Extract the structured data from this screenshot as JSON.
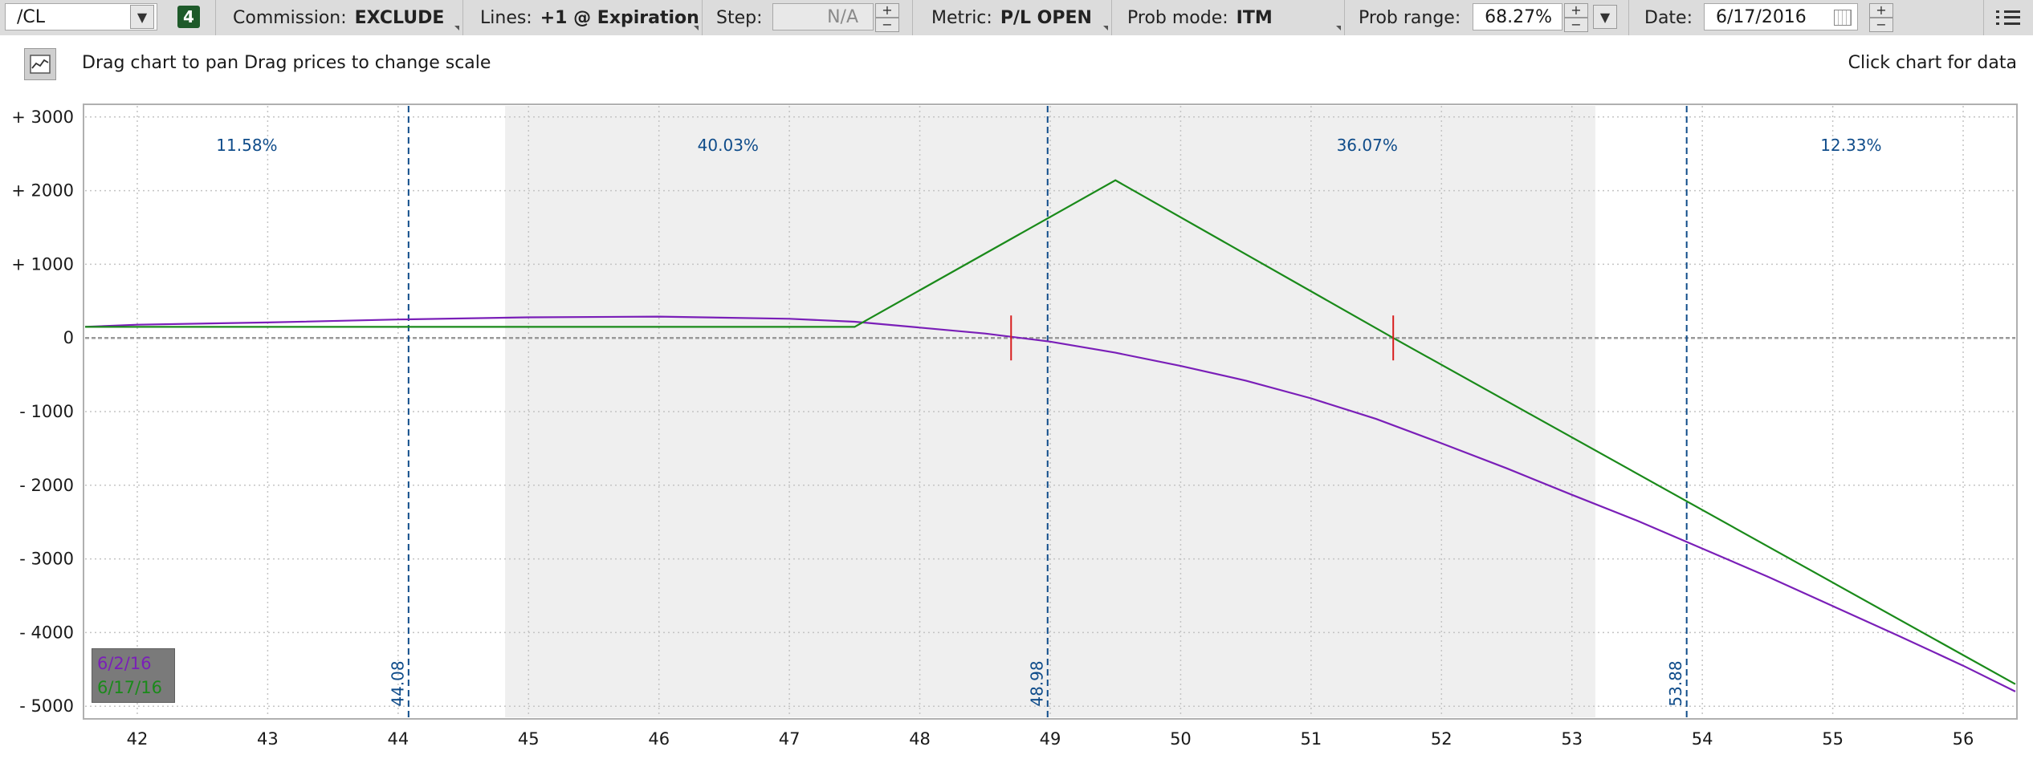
{
  "toolbar": {
    "symbol": "/CL",
    "count_badge": "4",
    "commission_label": "Commission:",
    "commission_value": "EXCLUDE",
    "lines_label": "Lines:",
    "lines_value": "+1 @ Expiration",
    "step_label": "Step:",
    "step_value": "N/A",
    "metric_label": "Metric:",
    "metric_value": "P/L OPEN",
    "prob_mode_label": "Prob mode:",
    "prob_mode_value": "ITM",
    "prob_range_label": "Prob range:",
    "prob_range_value": "68.27%",
    "date_label": "Date:",
    "date_value": "6/17/2016"
  },
  "hints": {
    "drag": "Drag chart to pan Drag prices to change scale",
    "click": "Click chart for data"
  },
  "legend": {
    "items": [
      {
        "label": "6/2/16",
        "color": "#7a1fb8"
      },
      {
        "label": "6/17/16",
        "color": "#1a8a1a"
      }
    ]
  },
  "chart_data": {
    "type": "line",
    "xlim": [
      41.6,
      56.4
    ],
    "ylim": [
      -5150,
      3150
    ],
    "x_ticks": [
      42,
      43,
      44,
      45,
      46,
      47,
      48,
      49,
      50,
      51,
      52,
      53,
      54,
      55,
      56
    ],
    "y_ticks": [
      {
        "value": 3000,
        "label": "+ 3000"
      },
      {
        "value": 2000,
        "label": "+ 2000"
      },
      {
        "value": 1000,
        "label": "+ 1000"
      },
      {
        "value": 0,
        "label": "0"
      },
      {
        "value": -1000,
        "label": "- 1000"
      },
      {
        "value": -2000,
        "label": "- 2000"
      },
      {
        "value": -3000,
        "label": "- 3000"
      },
      {
        "value": -4000,
        "label": "- 4000"
      },
      {
        "value": -5000,
        "label": "- 5000"
      }
    ],
    "probability_band": [
      44.82,
      53.18
    ],
    "regions": [
      {
        "from": 41.6,
        "to": 44.08,
        "label": "11.58%"
      },
      {
        "from": 44.08,
        "to": 48.98,
        "label": "40.03%"
      },
      {
        "from": 48.98,
        "to": 53.88,
        "label": "36.07%"
      },
      {
        "from": 53.88,
        "to": 56.4,
        "label": "12.33%"
      }
    ],
    "price_lines": [
      {
        "x": 44.08,
        "label": "44.08"
      },
      {
        "x": 48.98,
        "label": "48.98"
      },
      {
        "x": 53.88,
        "label": "53.88"
      }
    ],
    "breakevens": [
      48.7,
      51.63
    ],
    "series": [
      {
        "name": "6/2/16",
        "color": "#7a1fb8",
        "x": [
          41.6,
          42,
          43,
          44,
          45,
          46,
          47,
          47.5,
          48,
          48.5,
          49,
          49.5,
          50,
          50.5,
          51,
          51.5,
          52,
          52.5,
          53,
          53.5,
          54,
          54.5,
          55,
          55.5,
          56,
          56.4
        ],
        "y": [
          150,
          180,
          210,
          250,
          280,
          290,
          260,
          220,
          140,
          60,
          -50,
          -200,
          -380,
          -580,
          -820,
          -1100,
          -1430,
          -1770,
          -2130,
          -2480,
          -2860,
          -3240,
          -3640,
          -4040,
          -4450,
          -4800
        ]
      },
      {
        "name": "6/17/16",
        "color": "#1a8a1a",
        "x": [
          41.6,
          47.5,
          49.5,
          51.63,
          56.4
        ],
        "y": [
          150,
          150,
          2140,
          0,
          -4700
        ]
      }
    ]
  }
}
